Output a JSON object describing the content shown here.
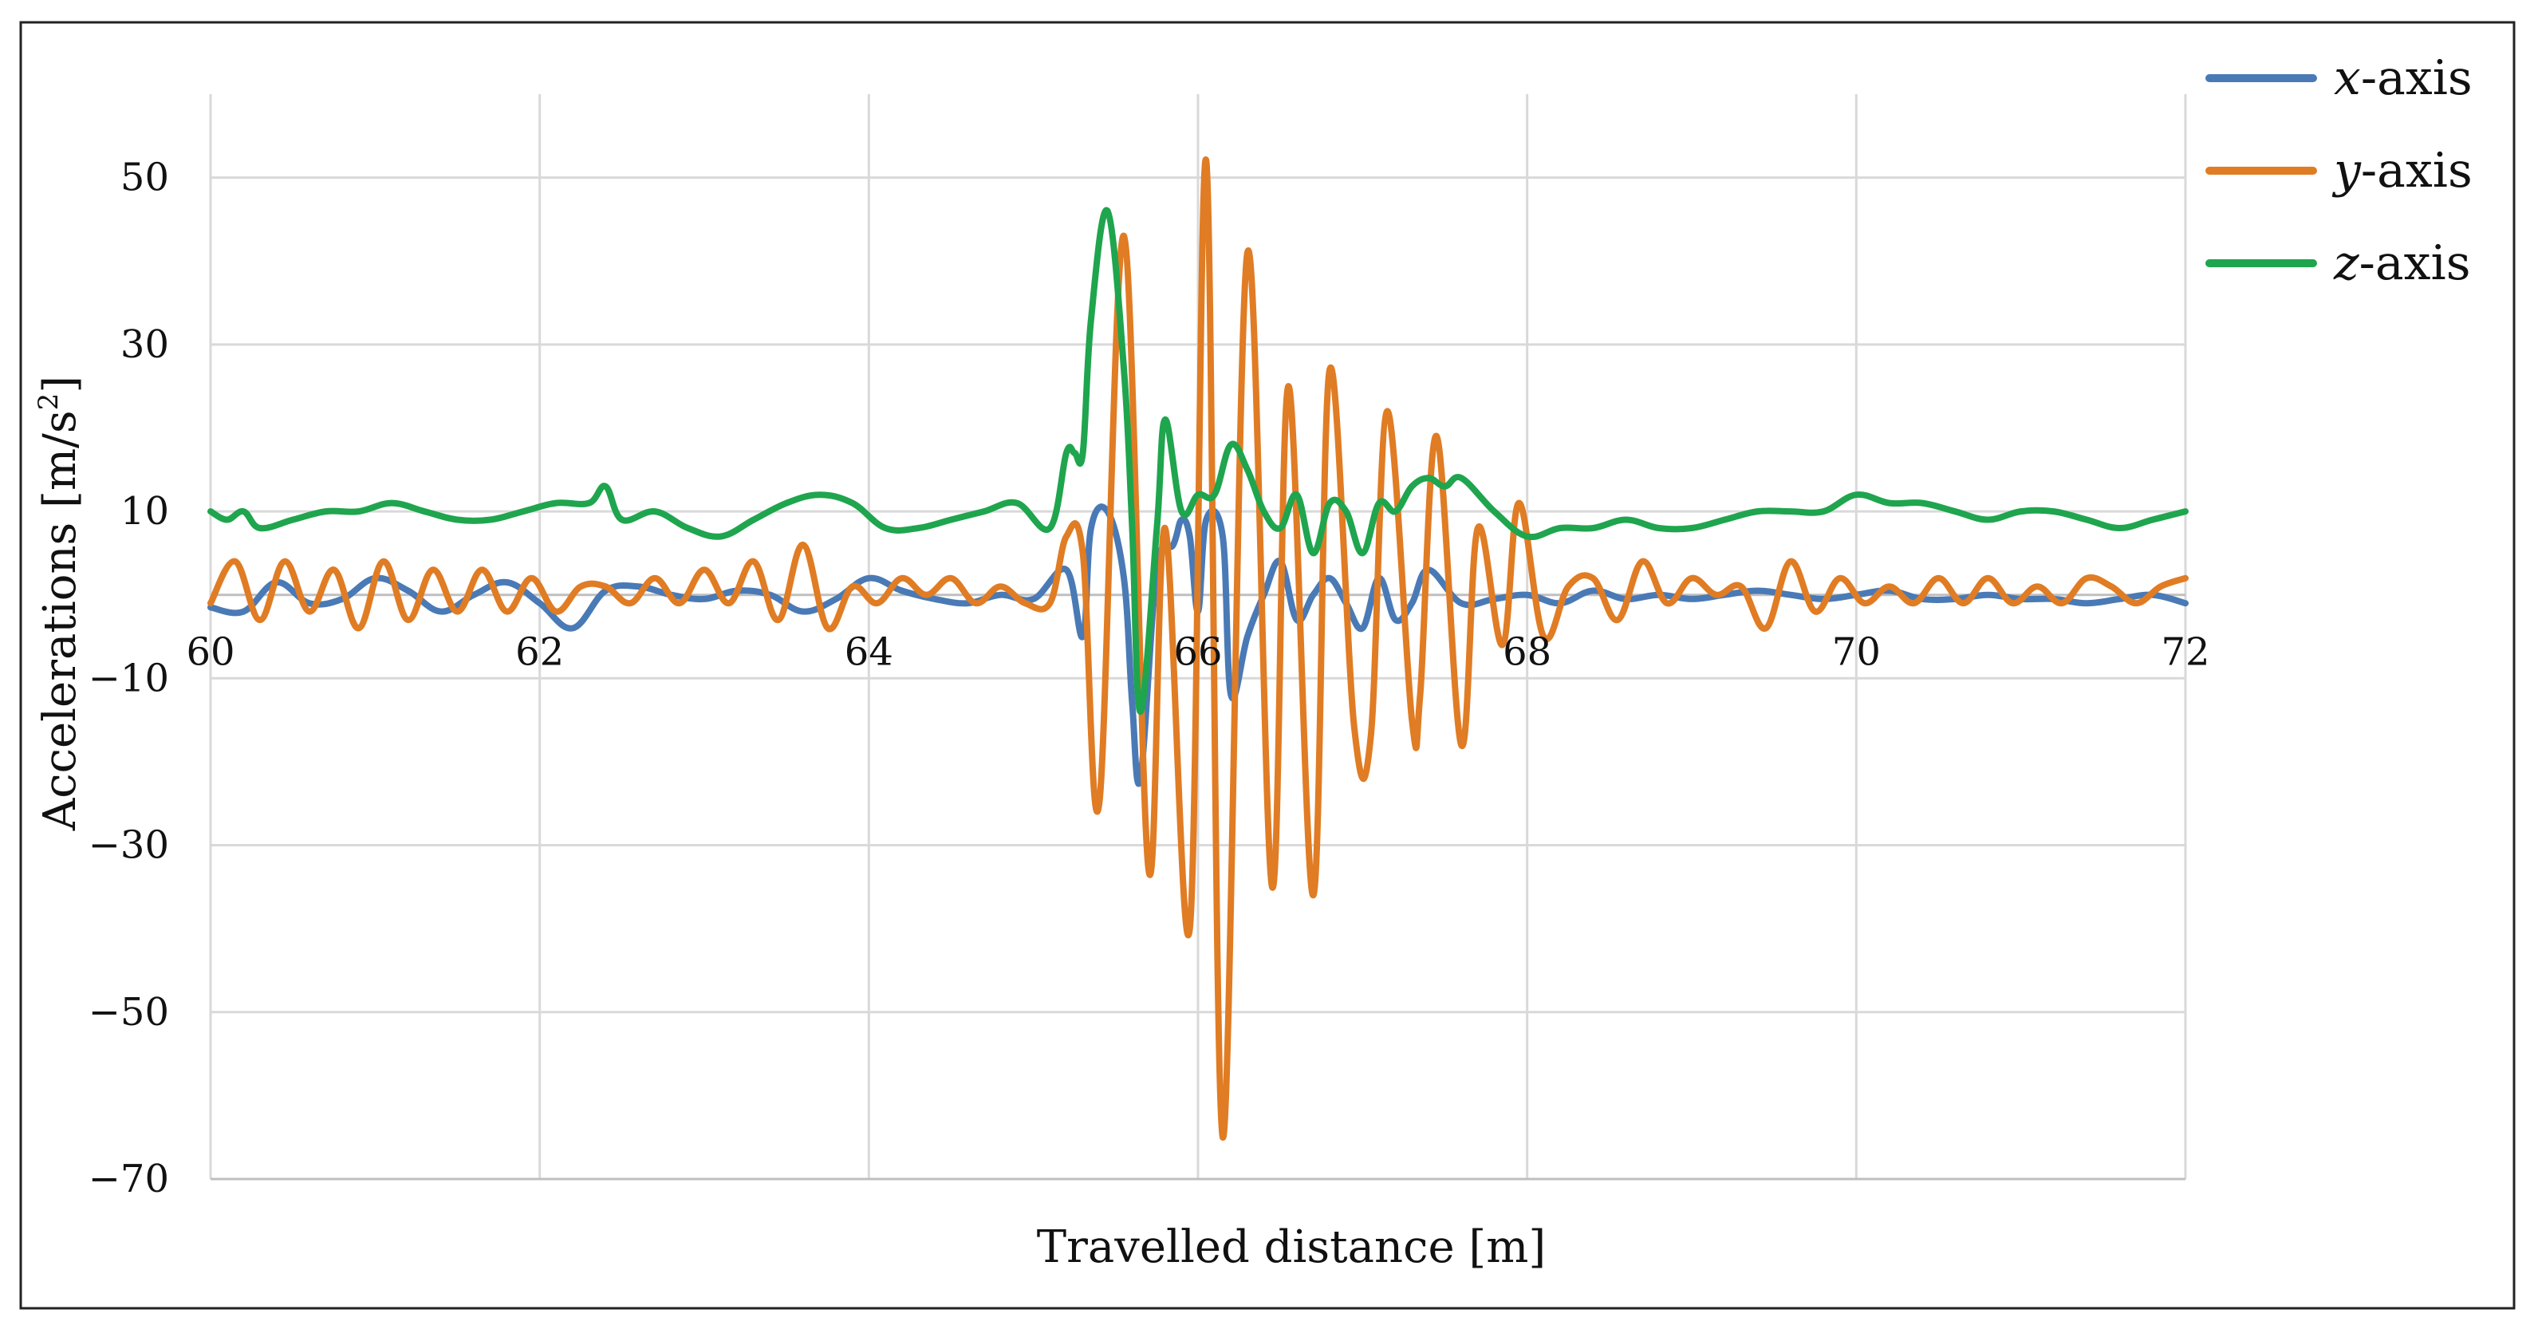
{
  "chart_data": {
    "type": "line",
    "title": "",
    "xlabel": "Travelled distance [m]",
    "ylabel_main": "Accelerations [m/s",
    "ylabel_sup": "2",
    "ylabel_end": "]",
    "xlim": [
      60,
      72
    ],
    "ylim": [
      -70,
      60
    ],
    "x_ticks": [
      60,
      62,
      64,
      66,
      68,
      70,
      72
    ],
    "x_tick_labels": [
      "60",
      "62",
      "64",
      "66",
      "68",
      "70",
      "72"
    ],
    "y_ticks": [
      50,
      30,
      10,
      -10,
      -30,
      -50,
      -70
    ],
    "y_tick_labels": [
      "50",
      "30",
      "10",
      "−10",
      "−30",
      "−50",
      "−70"
    ],
    "grid": true,
    "legend_position": "top-right",
    "series": [
      {
        "name": "x-axis",
        "name_italic": "x",
        "name_rest": "-axis",
        "color": "#4a7ab5",
        "x": [
          60.0,
          60.2,
          60.4,
          60.6,
          60.8,
          61.0,
          61.2,
          61.4,
          61.6,
          61.8,
          62.0,
          62.2,
          62.4,
          62.6,
          62.8,
          63.0,
          63.2,
          63.4,
          63.6,
          63.8,
          64.0,
          64.2,
          64.4,
          64.6,
          64.8,
          65.0,
          65.2,
          65.3,
          65.35,
          65.45,
          65.55,
          65.6,
          65.65,
          65.75,
          65.85,
          65.9,
          65.95,
          66.0,
          66.05,
          66.15,
          66.2,
          66.3,
          66.4,
          66.5,
          66.6,
          66.7,
          66.8,
          66.9,
          67.0,
          67.1,
          67.2,
          67.3,
          67.4,
          67.6,
          67.8,
          68.0,
          68.2,
          68.4,
          68.6,
          68.8,
          69.0,
          69.2,
          69.4,
          69.6,
          69.8,
          70.0,
          70.2,
          70.4,
          70.6,
          70.8,
          71.0,
          71.2,
          71.4,
          71.6,
          71.8,
          72.0
        ],
        "y": [
          -1.5,
          -2,
          1.5,
          -1,
          -0.5,
          2,
          0.5,
          -2,
          0,
          1.5,
          -1,
          -4,
          0.5,
          1,
          0,
          -0.5,
          0.5,
          0,
          -2,
          -0.5,
          2,
          0.5,
          -0.5,
          -1,
          0,
          -0.5,
          3,
          -5,
          8,
          10,
          2,
          -13,
          -22,
          3,
          6,
          9,
          7,
          -2,
          9,
          7,
          -12,
          -5,
          0,
          4,
          -3,
          0,
          2,
          -1,
          -4,
          2,
          -3,
          -1,
          3,
          -1,
          -0.5,
          0,
          -1,
          0.5,
          -0.5,
          0,
          -0.5,
          0,
          0.5,
          0,
          -0.5,
          0,
          0.5,
          -0.5,
          -0.5,
          0,
          -0.5,
          -0.5,
          -1,
          -0.5,
          0,
          -1
        ]
      },
      {
        "name": "y-axis",
        "name_italic": "y",
        "name_rest": "-axis",
        "color": "#e07c24",
        "x": [
          60.0,
          60.15,
          60.3,
          60.45,
          60.6,
          60.75,
          60.9,
          61.05,
          61.2,
          61.35,
          61.5,
          61.65,
          61.8,
          61.95,
          62.1,
          62.25,
          62.4,
          62.55,
          62.7,
          62.85,
          63.0,
          63.15,
          63.3,
          63.45,
          63.6,
          63.75,
          63.9,
          64.05,
          64.2,
          64.35,
          64.5,
          64.65,
          64.8,
          64.95,
          65.1,
          65.2,
          65.3,
          65.4,
          65.55,
          65.7,
          65.8,
          65.95,
          66.05,
          66.15,
          66.3,
          66.45,
          66.55,
          66.7,
          66.8,
          66.95,
          67.05,
          67.15,
          67.3,
          67.35,
          67.45,
          67.6,
          67.7,
          67.85,
          67.95,
          68.1,
          68.25,
          68.4,
          68.55,
          68.7,
          68.85,
          69.0,
          69.15,
          69.3,
          69.45,
          69.6,
          69.75,
          69.9,
          70.05,
          70.2,
          70.35,
          70.5,
          70.65,
          70.8,
          70.95,
          71.1,
          71.25,
          71.4,
          71.55,
          71.7,
          71.85,
          72.0
        ],
        "y": [
          -1,
          4,
          -3,
          4,
          -2,
          3,
          -4,
          4,
          -3,
          3,
          -2,
          3,
          -2,
          2,
          -2,
          1,
          1,
          -1,
          2,
          -1,
          3,
          -1,
          4,
          -3,
          6,
          -4,
          1,
          -1,
          2,
          0,
          2,
          -1,
          1,
          -1,
          -1,
          7,
          5,
          -25,
          43,
          -33,
          8,
          -40,
          52,
          -65,
          41,
          -35,
          25,
          -36,
          27,
          -16,
          -17,
          22,
          -15,
          -12,
          19,
          -18,
          8,
          -6,
          11,
          -5,
          1,
          2,
          -3,
          4,
          -1,
          2,
          0,
          1,
          -4,
          4,
          -2,
          2,
          -1,
          1,
          -1,
          2,
          -1,
          2,
          -1,
          1,
          -1,
          2,
          1,
          -1,
          1,
          2
        ]
      },
      {
        "name": "z-axis",
        "name_italic": "z",
        "name_rest": "-axis",
        "color": "#1fa54e",
        "x": [
          60.0,
          60.1,
          60.2,
          60.3,
          60.5,
          60.7,
          60.9,
          61.1,
          61.3,
          61.5,
          61.7,
          61.9,
          62.1,
          62.3,
          62.4,
          62.5,
          62.7,
          62.9,
          63.1,
          63.3,
          63.5,
          63.7,
          63.9,
          64.1,
          64.3,
          64.5,
          64.7,
          64.9,
          65.1,
          65.2,
          65.25,
          65.3,
          65.35,
          65.45,
          65.55,
          65.6,
          65.65,
          65.75,
          65.8,
          65.9,
          66.0,
          66.1,
          66.2,
          66.3,
          66.4,
          66.5,
          66.6,
          66.7,
          66.8,
          66.9,
          67.0,
          67.1,
          67.2,
          67.3,
          67.4,
          67.5,
          67.6,
          67.8,
          68.0,
          68.2,
          68.4,
          68.6,
          68.8,
          69.0,
          69.2,
          69.4,
          69.6,
          69.8,
          70.0,
          70.2,
          70.4,
          70.6,
          70.8,
          71.0,
          71.2,
          71.4,
          71.6,
          71.8,
          72.0
        ],
        "y": [
          10,
          9,
          10,
          8,
          9,
          10,
          10,
          11,
          10,
          9,
          9,
          10,
          11,
          11,
          13,
          9,
          10,
          8,
          7,
          9,
          11,
          12,
          11,
          8,
          8,
          9,
          10,
          11,
          8,
          17,
          17,
          17,
          33,
          46,
          27,
          8,
          -14,
          8,
          21,
          10,
          12,
          12,
          18,
          15,
          10,
          8,
          12,
          5,
          11,
          10,
          5,
          11,
          10,
          13,
          14,
          13,
          14,
          10,
          7,
          8,
          8,
          9,
          8,
          8,
          9,
          10,
          10,
          10,
          12,
          11,
          11,
          10,
          9,
          10,
          10,
          9,
          8,
          9,
          10
        ]
      }
    ]
  }
}
